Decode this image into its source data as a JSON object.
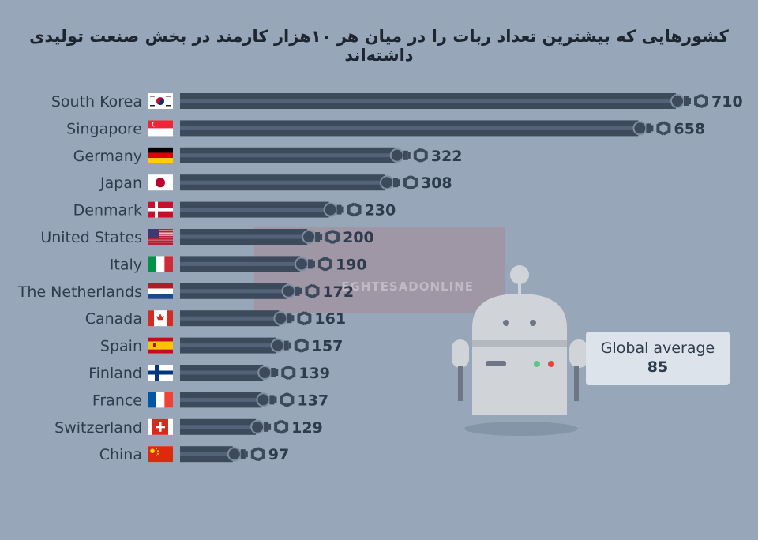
{
  "title": "کشورهایی که بیشترین تعداد ربات را در میان هر ۱۰هزار کارمند در بخش صنعت تولیدی داشته‌اند",
  "watermark_text": "EGHTESADONLINE",
  "global_average": {
    "label": "Global average",
    "value": "85"
  },
  "colors": {
    "background": "#97a7b9",
    "bar_dark": "#3d4a5c",
    "bar_mid": "#55637a",
    "text": "#2e3b4c",
    "robot_body": "#d0d3d8",
    "robot_shadow": "#8595a8"
  },
  "chart_data": {
    "type": "bar",
    "orientation": "horizontal",
    "title": "کشورهایی که بیشترین تعداد ربات را در میان هر ۱۰هزار کارمند در بخش صنعت تولیدی داشته‌اند",
    "categories": [
      "South Korea",
      "Singapore",
      "Germany",
      "Japan",
      "Denmark",
      "United States",
      "Italy",
      "The Netherlands",
      "Canada",
      "Spain",
      "Finland",
      "France",
      "Switzerland",
      "China"
    ],
    "values": [
      710,
      658,
      322,
      308,
      230,
      200,
      190,
      172,
      161,
      157,
      139,
      137,
      129,
      97
    ],
    "flags": [
      "south-korea-flag",
      "singapore-flag",
      "germany-flag",
      "japan-flag",
      "denmark-flag",
      "united-states-flag",
      "italy-flag",
      "netherlands-flag",
      "canada-flag",
      "spain-flag",
      "finland-flag",
      "france-flag",
      "switzerland-flag",
      "china-flag"
    ],
    "xlim": [
      0,
      710
    ],
    "grid": false,
    "legend": "none"
  }
}
